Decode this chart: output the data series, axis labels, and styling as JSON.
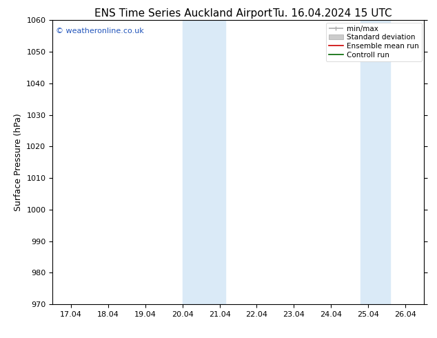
{
  "title_left": "ENS Time Series Auckland Airport",
  "title_right": "Tu. 16.04.2024 15 UTC",
  "ylabel": "Surface Pressure (hPa)",
  "ylim": [
    970,
    1060
  ],
  "yticks": [
    970,
    980,
    990,
    1000,
    1010,
    1020,
    1030,
    1040,
    1050,
    1060
  ],
  "xtick_labels": [
    "17.04",
    "18.04",
    "19.04",
    "20.04",
    "21.04",
    "22.04",
    "23.04",
    "24.04",
    "25.04",
    "26.04"
  ],
  "xmin": 0,
  "xmax": 9,
  "shade_bands": [
    {
      "xstart": 3.0,
      "xend": 4.15,
      "color": "#daeaf7"
    },
    {
      "xstart": 7.8,
      "xend": 8.6,
      "color": "#daeaf7"
    }
  ],
  "background_color": "#ffffff",
  "watermark_text": "© weatheronline.co.uk",
  "watermark_color": "#2255bb",
  "legend_items": [
    {
      "label": "min/max"
    },
    {
      "label": "Standard deviation"
    },
    {
      "label": "Ensemble mean run"
    },
    {
      "label": "Controll run"
    }
  ],
  "title_fontsize": 11,
  "tick_label_fontsize": 8,
  "ylabel_fontsize": 9,
  "legend_fontsize": 7.5
}
